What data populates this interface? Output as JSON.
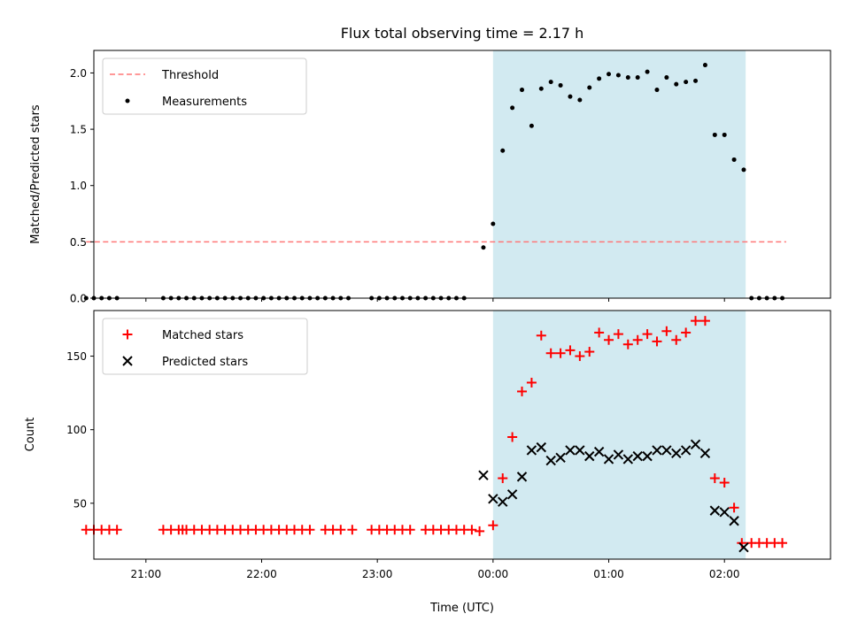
{
  "chart_data": [
    {
      "type": "scatter",
      "title": "Flux total observing time = 2.17 h",
      "xlabel": "",
      "ylabel": "Matched/Predicted stars",
      "xlim": [
        "20:33",
        "02:55"
      ],
      "ylim": [
        0,
        2.2
      ],
      "yticks": [
        "0.0",
        "0.5",
        "1.0",
        "1.5",
        "2.0"
      ],
      "shaded_span": {
        "x": [
          "00:00",
          "02:11"
        ],
        "color": "#add8e6"
      },
      "legend_position": "upper left",
      "series": [
        {
          "name": "Threshold",
          "kind": "dashed-line",
          "color": "#ff7777",
          "x": [
            "20:29",
            "02:32"
          ],
          "y": [
            0.5,
            0.5
          ]
        },
        {
          "name": "Measurements",
          "kind": "dots",
          "color": "#000000",
          "points": [
            [
              "20:29",
              0
            ],
            [
              "20:33",
              0
            ],
            [
              "20:37",
              0
            ],
            [
              "20:41",
              0
            ],
            [
              "20:45",
              0
            ],
            [
              "21:09",
              0
            ],
            [
              "21:13",
              0
            ],
            [
              "21:17",
              0
            ],
            [
              "21:21",
              0
            ],
            [
              "21:25",
              0
            ],
            [
              "21:29",
              0
            ],
            [
              "21:33",
              0
            ],
            [
              "21:37",
              0
            ],
            [
              "21:41",
              0
            ],
            [
              "21:45",
              0
            ],
            [
              "21:49",
              0
            ],
            [
              "21:53",
              0
            ],
            [
              "21:57",
              0
            ],
            [
              "22:01",
              0
            ],
            [
              "22:05",
              0
            ],
            [
              "22:09",
              0
            ],
            [
              "22:13",
              0
            ],
            [
              "22:17",
              0
            ],
            [
              "22:21",
              0
            ],
            [
              "22:25",
              0
            ],
            [
              "22:29",
              0
            ],
            [
              "22:33",
              0
            ],
            [
              "22:37",
              0
            ],
            [
              "22:41",
              0
            ],
            [
              "22:45",
              0
            ],
            [
              "22:57",
              0
            ],
            [
              "23:01",
              0
            ],
            [
              "23:05",
              0
            ],
            [
              "23:09",
              0
            ],
            [
              "23:13",
              0
            ],
            [
              "23:17",
              0
            ],
            [
              "23:21",
              0
            ],
            [
              "23:25",
              0
            ],
            [
              "23:29",
              0
            ],
            [
              "23:33",
              0
            ],
            [
              "23:37",
              0
            ],
            [
              "23:41",
              0
            ],
            [
              "23:45",
              0
            ],
            [
              "23:55",
              0.45
            ],
            [
              "24:00",
              0.66
            ],
            [
              "24:05",
              1.31
            ],
            [
              "24:10",
              1.69
            ],
            [
              "24:15",
              1.85
            ],
            [
              "24:20",
              1.53
            ],
            [
              "24:25",
              1.86
            ],
            [
              "24:30",
              1.92
            ],
            [
              "24:35",
              1.89
            ],
            [
              "24:40",
              1.79
            ],
            [
              "24:45",
              1.76
            ],
            [
              "24:50",
              1.87
            ],
            [
              "24:55",
              1.95
            ],
            [
              "25:00",
              1.99
            ],
            [
              "25:05",
              1.98
            ],
            [
              "25:10",
              1.96
            ],
            [
              "25:15",
              1.96
            ],
            [
              "25:20",
              2.01
            ],
            [
              "25:25",
              1.85
            ],
            [
              "25:30",
              1.96
            ],
            [
              "25:35",
              1.9
            ],
            [
              "25:40",
              1.92
            ],
            [
              "25:45",
              1.93
            ],
            [
              "25:50",
              2.07
            ],
            [
              "25:55",
              1.45
            ],
            [
              "26:00",
              1.45
            ],
            [
              "26:05",
              1.23
            ],
            [
              "26:10",
              1.14
            ],
            [
              "26:14",
              0
            ],
            [
              "26:18",
              0
            ],
            [
              "26:22",
              0
            ],
            [
              "26:26",
              0
            ],
            [
              "26:30",
              0
            ]
          ]
        }
      ]
    },
    {
      "type": "scatter",
      "title": "",
      "xlabel": "Time (UTC)",
      "ylabel": "Count",
      "xlim": [
        "20:33",
        "02:55"
      ],
      "ylim": [
        12,
        181
      ],
      "yticks": [
        "50",
        "100",
        "150"
      ],
      "xticks": [
        "21:00",
        "22:00",
        "23:00",
        "00:00",
        "01:00",
        "02:00"
      ],
      "shaded_span": {
        "x": [
          "00:00",
          "02:11"
        ],
        "color": "#add8e6"
      },
      "legend_position": "upper left",
      "series": [
        {
          "name": "Matched stars",
          "kind": "plus",
          "color": "#ff0000",
          "points": [
            [
              "20:29",
              32
            ],
            [
              "20:33",
              32
            ],
            [
              "20:37",
              32
            ],
            [
              "20:41",
              32
            ],
            [
              "20:45",
              32
            ],
            [
              "21:09",
              32
            ],
            [
              "21:13",
              32
            ],
            [
              "21:17",
              32
            ],
            [
              "21:19",
              32
            ],
            [
              "21:21",
              32
            ],
            [
              "21:25",
              32
            ],
            [
              "21:29",
              32
            ],
            [
              "21:33",
              32
            ],
            [
              "21:37",
              32
            ],
            [
              "21:41",
              32
            ],
            [
              "21:45",
              32
            ],
            [
              "21:49",
              32
            ],
            [
              "21:53",
              32
            ],
            [
              "21:57",
              32
            ],
            [
              "22:01",
              32
            ],
            [
              "22:05",
              32
            ],
            [
              "22:09",
              32
            ],
            [
              "22:13",
              32
            ],
            [
              "22:17",
              32
            ],
            [
              "22:21",
              32
            ],
            [
              "22:25",
              32
            ],
            [
              "22:33",
              32
            ],
            [
              "22:37",
              32
            ],
            [
              "22:41",
              32
            ],
            [
              "22:47",
              32
            ],
            [
              "22:57",
              32
            ],
            [
              "23:01",
              32
            ],
            [
              "23:05",
              32
            ],
            [
              "23:09",
              32
            ],
            [
              "23:13",
              32
            ],
            [
              "23:17",
              32
            ],
            [
              "23:25",
              32
            ],
            [
              "23:29",
              32
            ],
            [
              "23:33",
              32
            ],
            [
              "23:37",
              32
            ],
            [
              "23:41",
              32
            ],
            [
              "23:45",
              32
            ],
            [
              "23:49",
              32
            ],
            [
              "23:53",
              31
            ],
            [
              "24:00",
              35
            ],
            [
              "24:05",
              67
            ],
            [
              "24:10",
              95
            ],
            [
              "24:15",
              126
            ],
            [
              "24:20",
              132
            ],
            [
              "24:25",
              164
            ],
            [
              "24:30",
              152
            ],
            [
              "24:35",
              152
            ],
            [
              "24:40",
              154
            ],
            [
              "24:45",
              150
            ],
            [
              "24:50",
              153
            ],
            [
              "24:55",
              166
            ],
            [
              "25:00",
              161
            ],
            [
              "25:05",
              165
            ],
            [
              "25:10",
              158
            ],
            [
              "25:15",
              161
            ],
            [
              "25:20",
              165
            ],
            [
              "25:25",
              160
            ],
            [
              "25:30",
              167
            ],
            [
              "25:35",
              161
            ],
            [
              "25:40",
              166
            ],
            [
              "25:45",
              174
            ],
            [
              "25:50",
              174
            ],
            [
              "25:55",
              67
            ],
            [
              "26:00",
              64
            ],
            [
              "26:05",
              47
            ],
            [
              "26:09",
              23
            ],
            [
              "26:14",
              23
            ],
            [
              "26:18",
              23
            ],
            [
              "26:22",
              23
            ],
            [
              "26:26",
              23
            ],
            [
              "26:30",
              23
            ]
          ]
        },
        {
          "name": "Predicted stars",
          "kind": "x",
          "color": "#000000",
          "points": [
            [
              "23:55",
              69
            ],
            [
              "24:00",
              53
            ],
            [
              "24:05",
              51
            ],
            [
              "24:10",
              56
            ],
            [
              "24:15",
              68
            ],
            [
              "24:20",
              86
            ],
            [
              "24:25",
              88
            ],
            [
              "24:30",
              79
            ],
            [
              "24:35",
              81
            ],
            [
              "24:40",
              86
            ],
            [
              "24:45",
              86
            ],
            [
              "24:50",
              82
            ],
            [
              "24:55",
              85
            ],
            [
              "25:00",
              80
            ],
            [
              "25:05",
              83
            ],
            [
              "25:10",
              80
            ],
            [
              "25:15",
              82
            ],
            [
              "25:20",
              82
            ],
            [
              "25:25",
              86
            ],
            [
              "25:30",
              86
            ],
            [
              "25:35",
              84
            ],
            [
              "25:40",
              86
            ],
            [
              "25:45",
              90
            ],
            [
              "25:50",
              84
            ],
            [
              "25:55",
              45
            ],
            [
              "26:00",
              44
            ],
            [
              "26:05",
              38
            ],
            [
              "26:10",
              20
            ]
          ]
        }
      ]
    }
  ]
}
